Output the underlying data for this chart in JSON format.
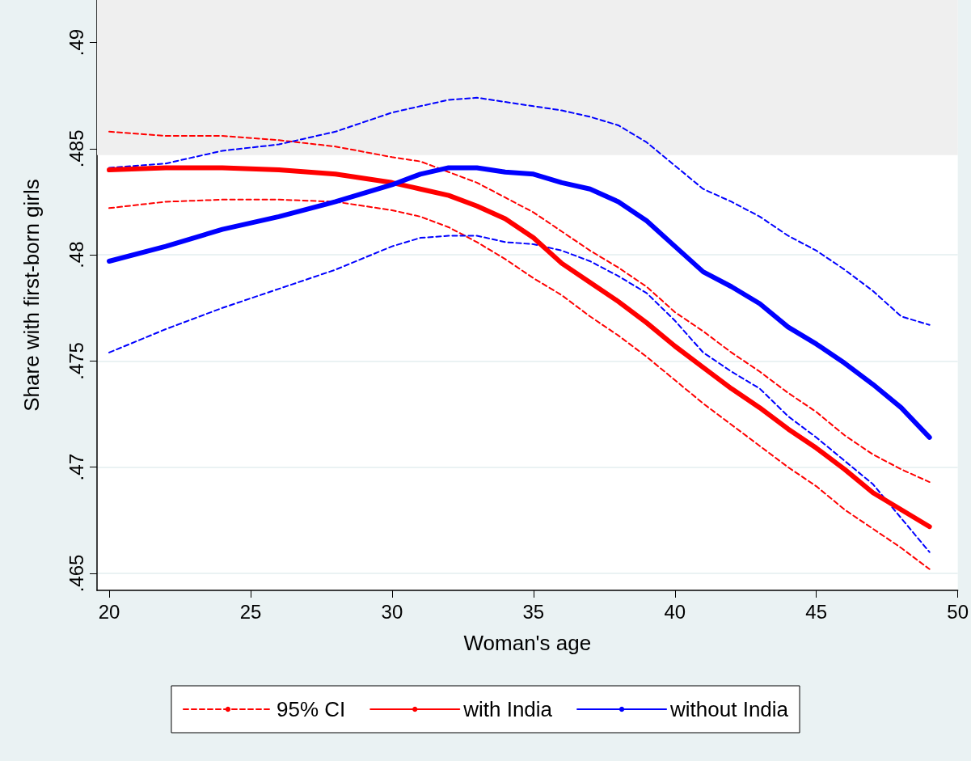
{
  "chart_data": {
    "type": "line",
    "xlabel": "Woman's age",
    "ylabel": "Share with first-born girls",
    "x": [
      20,
      22,
      24,
      26,
      28,
      30,
      31,
      32,
      33,
      34,
      35,
      36,
      37,
      38,
      39,
      40,
      41,
      42,
      43,
      44,
      45,
      46,
      47,
      48,
      49
    ],
    "series": [
      {
        "name": "95% CI",
        "color": "#ff0000",
        "line_style": "dashed",
        "values": [
          0.4858,
          0.4856,
          0.4856,
          0.4854,
          0.4851,
          0.4846,
          0.4844,
          0.4839,
          0.4834,
          0.4827,
          0.482,
          0.4811,
          0.4802,
          0.4794,
          0.4785,
          0.4773,
          0.4764,
          0.4754,
          0.4745,
          0.4735,
          0.4726,
          0.4715,
          0.4706,
          0.4699,
          0.4693
        ]
      },
      {
        "color": "#ff0000",
        "line_style": "dashed",
        "values": [
          0.4822,
          0.4825,
          0.4826,
          0.4826,
          0.4825,
          0.4821,
          0.4818,
          0.4813,
          0.4806,
          0.4798,
          0.4789,
          0.4781,
          0.4771,
          0.4762,
          0.4752,
          0.4741,
          0.473,
          0.472,
          0.471,
          0.47,
          0.4691,
          0.468,
          0.4671,
          0.4662,
          0.4652
        ]
      },
      {
        "color": "#0000ff",
        "line_style": "dashed",
        "values": [
          0.4841,
          0.4843,
          0.4849,
          0.4852,
          0.4858,
          0.4867,
          0.487,
          0.4873,
          0.4874,
          0.4872,
          0.487,
          0.4868,
          0.4865,
          0.4861,
          0.4853,
          0.4842,
          0.4831,
          0.4825,
          0.4818,
          0.4809,
          0.4802,
          0.4793,
          0.4783,
          0.4771,
          0.4767
        ]
      },
      {
        "color": "#0000ff",
        "line_style": "dashed",
        "values": [
          0.4754,
          0.4765,
          0.4775,
          0.4784,
          0.4793,
          0.4804,
          0.4808,
          0.4809,
          0.4809,
          0.4806,
          0.4805,
          0.4802,
          0.4797,
          0.479,
          0.4782,
          0.4769,
          0.4754,
          0.4745,
          0.4737,
          0.4724,
          0.4714,
          0.4703,
          0.4692,
          0.4676,
          0.466
        ]
      },
      {
        "name": "with India",
        "color": "#ff0000",
        "line_style": "solid",
        "values": [
          0.484,
          0.4841,
          0.4841,
          0.484,
          0.4838,
          0.4834,
          0.4831,
          0.4828,
          0.4823,
          0.4817,
          0.4808,
          0.4796,
          0.4787,
          0.4778,
          0.4768,
          0.4757,
          0.4747,
          0.4737,
          0.4728,
          0.4718,
          0.4709,
          0.4699,
          0.4688,
          0.468,
          0.4672
        ]
      },
      {
        "name": "without India",
        "color": "#0000ff",
        "line_style": "solid",
        "values": [
          0.4797,
          0.4804,
          0.4812,
          0.4818,
          0.4825,
          0.4833,
          0.4838,
          0.4841,
          0.4841,
          0.4839,
          0.4838,
          0.4834,
          0.4831,
          0.4825,
          0.4816,
          0.4804,
          0.4792,
          0.4785,
          0.4777,
          0.4766,
          0.4758,
          0.4749,
          0.4739,
          0.4728,
          0.4714
        ]
      }
    ],
    "xlim": [
      19.57,
      50
    ],
    "xticks": [
      20,
      25,
      30,
      35,
      40,
      45,
      50
    ],
    "ylim": [
      0.4642,
      0.492
    ],
    "yticks": [
      {
        "value": 0.465,
        "label": ".465"
      },
      {
        "value": 0.47,
        "label": ".47"
      },
      {
        "value": 0.475,
        "label": ".475"
      },
      {
        "value": 0.48,
        "label": ".48"
      },
      {
        "value": 0.485,
        "label": ".485"
      },
      {
        "value": 0.49,
        "label": ".49"
      }
    ],
    "bands": [
      {
        "axis": "y",
        "from": 0.4847,
        "to": 0.492,
        "color": "#efefef"
      }
    ],
    "grid": "y",
    "legend": "bottom",
    "marker": "none"
  }
}
